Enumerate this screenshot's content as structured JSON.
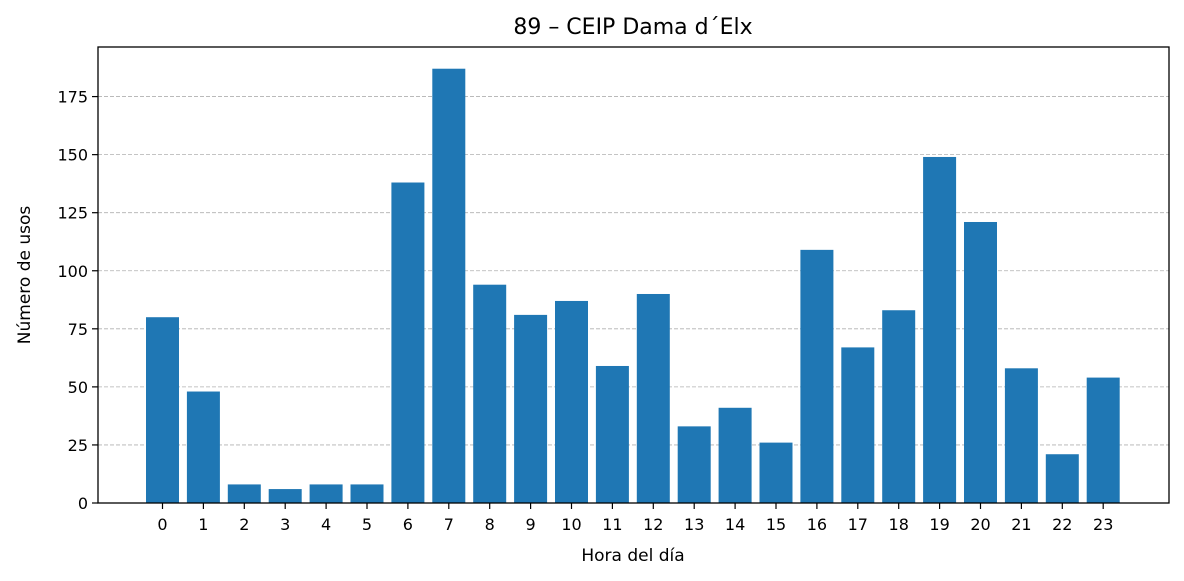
{
  "chart_data": {
    "type": "bar",
    "title": "89 – CEIP Dama d´Elx",
    "xlabel": "Hora del día",
    "ylabel": "Número de usos",
    "categories": [
      "0",
      "1",
      "2",
      "3",
      "4",
      "5",
      "6",
      "7",
      "8",
      "9",
      "10",
      "11",
      "12",
      "13",
      "14",
      "15",
      "16",
      "17",
      "18",
      "19",
      "20",
      "21",
      "22",
      "23"
    ],
    "values": [
      80,
      48,
      8,
      6,
      8,
      8,
      138,
      187,
      94,
      81,
      87,
      59,
      90,
      33,
      41,
      26,
      109,
      67,
      83,
      149,
      121,
      58,
      21,
      54
    ],
    "yticks": [
      0,
      25,
      50,
      75,
      100,
      125,
      150,
      175
    ],
    "ylim": [
      0,
      196.35
    ],
    "grid": "horizontal-dashed",
    "bar_color": "#1f77b4"
  }
}
